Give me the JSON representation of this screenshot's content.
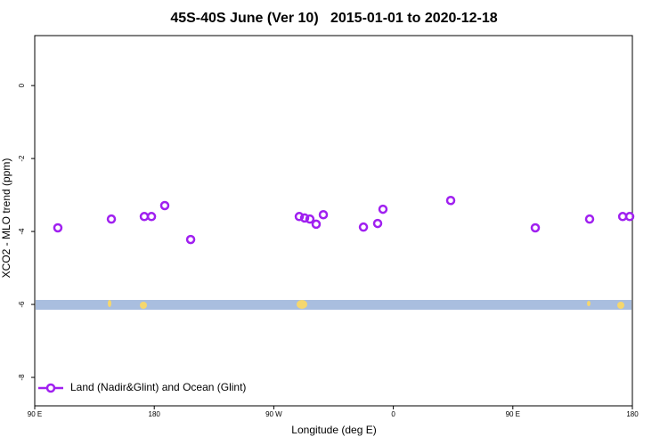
{
  "chart_data": {
    "type": "scatter",
    "title": "45S-40S June (Ver 10)   2015-01-01 to 2020-12-18",
    "x_label": "Longitude (deg E)",
    "y_label": "XCO2 - MLO trend (ppm)",
    "xlim": [
      90,
      540
    ],
    "ylim": [
      -8.78,
      1.37
    ],
    "xticks": [
      {
        "value": 90,
        "label": "90 E"
      },
      180,
      {
        "value": 270,
        "label": "90 W"
      },
      {
        "value": 360,
        "label": "0"
      },
      {
        "value": 450,
        "label": "90 E"
      },
      {
        "value": 540,
        "label": "180"
      }
    ],
    "yticks": [
      0,
      -2,
      -4,
      -6,
      -8
    ],
    "legend_position": "bottom-left",
    "series": [
      {
        "name": "Land (Nadir&Glint) and Ocean (Glint)",
        "color": "#a020f0",
        "x": [
          107.4,
          147.7,
          172.5,
          177.9,
          187.9,
          207.4,
          289.2,
          293.2,
          297.2,
          301.9,
          307.3,
          337.5,
          348.2,
          352.2,
          403.2,
          466.9,
          507.8,
          532.7,
          538.0
        ],
        "values": [
          -3.9,
          -3.66,
          -3.59,
          -3.59,
          -3.29,
          -4.22,
          -3.59,
          -3.63,
          -3.66,
          -3.8,
          -3.54,
          -3.88,
          -3.78,
          -3.39,
          -3.15,
          -3.9,
          -3.66,
          -3.59,
          -3.59
        ]
      }
    ]
  }
}
